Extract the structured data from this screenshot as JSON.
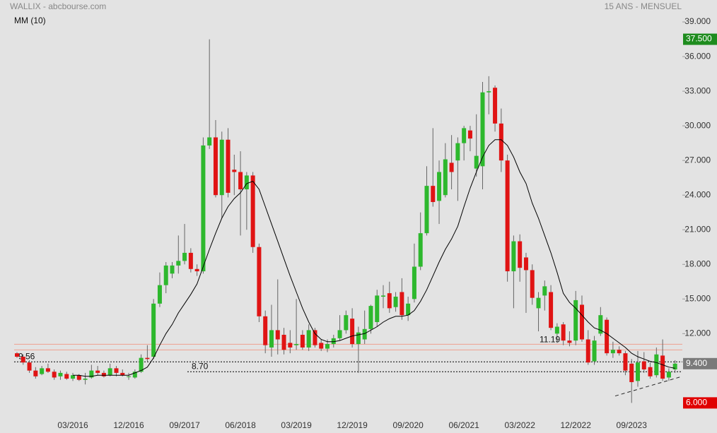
{
  "chart_data": {
    "type": "candlestick",
    "title": "WALLIX - abcbourse.com",
    "subtitle": "15 ANS - MENSUEL",
    "indicator_label": "MM (10)",
    "categories": [
      null,
      null,
      null,
      null,
      null,
      null,
      null,
      null,
      null,
      "03/2016",
      null,
      null,
      null,
      null,
      null,
      null,
      null,
      null,
      "12/2016",
      null,
      null,
      null,
      null,
      null,
      null,
      null,
      null,
      "09/2017",
      null,
      null,
      null,
      null,
      null,
      null,
      null,
      null,
      "06/2018",
      null,
      null,
      null,
      null,
      null,
      null,
      null,
      null,
      "03/2019",
      null,
      null,
      null,
      null,
      null,
      null,
      null,
      null,
      "12/2019",
      null,
      null,
      null,
      null,
      null,
      null,
      null,
      null,
      "09/2020",
      null,
      null,
      null,
      null,
      null,
      null,
      null,
      null,
      "06/2021",
      null,
      null,
      null,
      null,
      null,
      null,
      null,
      null,
      "03/2022",
      null,
      null,
      null,
      null,
      null,
      null,
      null,
      null,
      "12/2022",
      null,
      null,
      null,
      null,
      null,
      null,
      null,
      null,
      "09/2023",
      null,
      null,
      null,
      null,
      null,
      null,
      null
    ],
    "open": [
      10.3,
      10.0,
      9.5,
      8.8,
      8.5,
      9.0,
      8.7,
      8.3,
      8.5,
      8.1,
      8.4,
      8.0,
      8.2,
      8.8,
      8.6,
      8.4,
      9.0,
      8.6,
      8.3,
      8.2,
      8.7,
      9.9,
      10.0,
      14.6,
      16.2,
      17.2,
      17.9,
      18.3,
      19.0,
      17.6,
      17.4,
      28.3,
      29.0,
      24.0,
      28.8,
      26.2,
      26.0,
      24.5,
      25.7,
      19.5,
      13.5,
      10.8,
      12.3,
      11.9,
      11.2,
      11.0,
      11.9,
      10.8,
      12.3,
      11.2,
      10.7,
      11.1,
      11.6,
      12.3,
      13.3,
      11.1,
      11.5,
      12.4,
      13.0,
      15.2,
      15.5,
      14.3,
      15.6,
      13.6,
      15.0,
      17.8,
      20.7,
      24.8,
      23.5,
      24.0,
      26.8,
      27.0,
      28.5,
      29.6,
      26.3,
      26.5,
      32.9,
      33.3,
      30.2,
      27.0,
      17.4,
      20.0,
      18.6,
      17.5,
      14.2,
      15.3,
      15.6,
      12.0,
      12.8,
      11.4,
      11.4,
      14.5,
      11.5,
      9.6,
      12.0,
      13.2,
      10.3,
      10.6,
      10.3,
      9.4,
      7.9,
      9.6,
      9.1,
      8.4,
      10.1,
      8.2,
      8.9
    ],
    "high": [
      10.4,
      10.2,
      9.7,
      9.1,
      9.2,
      9.4,
      8.9,
      8.8,
      8.7,
      8.6,
      8.5,
      8.6,
      9.3,
      9.2,
      8.8,
      9.4,
      9.2,
      8.9,
      8.6,
      8.9,
      10.2,
      11.0,
      15.0,
      17.3,
      18.2,
      18.2,
      20.5,
      21.5,
      19.4,
      18.0,
      29.0,
      37.5,
      30.5,
      29.5,
      29.8,
      27.5,
      27.8,
      26.0,
      26.0,
      19.8,
      14.0,
      14.5,
      16.7,
      12.5,
      12.3,
      15.0,
      12.3,
      12.8,
      12.5,
      11.5,
      11.5,
      11.9,
      13.6,
      14.0,
      14.2,
      12.6,
      14.0,
      14.5,
      15.8,
      16.2,
      16.5,
      15.6,
      16.8,
      15.2,
      19.8,
      22.5,
      26.5,
      29.8,
      27.0,
      28.5,
      29.2,
      29.0,
      30.0,
      30.0,
      31.0,
      33.8,
      34.3,
      33.5,
      31.5,
      27.5,
      20.5,
      20.6,
      19.0,
      18.0,
      15.6,
      16.6,
      16.2,
      12.9,
      13.0,
      12.2,
      15.7,
      15.3,
      12.3,
      11.8,
      14.3,
      13.4,
      11.3,
      10.9,
      10.5,
      9.8,
      10.5,
      10.4,
      9.5,
      10.8,
      11.5,
      9.0,
      9.7
    ],
    "low": [
      9.9,
      9.3,
      8.6,
      8.1,
      8.4,
      8.6,
      8.0,
      8.0,
      8.0,
      7.9,
      7.9,
      7.6,
      8.1,
      8.4,
      8.2,
      8.3,
      8.3,
      8.3,
      8.0,
      8.1,
      8.6,
      9.6,
      9.8,
      14.3,
      15.5,
      16.8,
      17.2,
      18.0,
      17.3,
      17.0,
      17.2,
      28.0,
      23.8,
      22.0,
      23.8,
      24.0,
      20.5,
      21.0,
      19.0,
      13.0,
      10.3,
      10.0,
      10.2,
      10.2,
      10.3,
      10.6,
      10.6,
      10.5,
      10.8,
      10.5,
      10.4,
      10.8,
      11.4,
      12.0,
      10.8,
      8.6,
      11.1,
      12.0,
      12.6,
      14.2,
      13.8,
      13.9,
      13.2,
      13.1,
      14.7,
      17.5,
      20.5,
      23.0,
      21.5,
      23.8,
      24.5,
      23.5,
      27.0,
      27.8,
      25.6,
      24.5,
      31.0,
      29.5,
      26.0,
      16.5,
      14.2,
      16.5,
      13.8,
      14.5,
      12.2,
      14.0,
      12.3,
      11.2,
      11.0,
      10.9,
      11.0,
      11.3,
      9.3,
      9.3,
      11.8,
      10.1,
      9.9,
      10.1,
      8.4,
      6.0,
      7.4,
      8.6,
      8.1,
      8.2,
      7.9,
      7.9,
      8.6
    ],
    "close": [
      10.0,
      9.5,
      8.8,
      8.3,
      9.0,
      8.7,
      8.2,
      8.6,
      8.1,
      8.4,
      8.0,
      8.1,
      8.8,
      8.6,
      8.3,
      9.0,
      8.6,
      8.4,
      8.3,
      8.7,
      9.9,
      9.8,
      14.6,
      16.2,
      17.9,
      17.9,
      18.3,
      19.0,
      17.6,
      17.4,
      28.3,
      29.0,
      24.0,
      28.8,
      24.2,
      26.0,
      24.5,
      25.7,
      19.5,
      13.5,
      11.0,
      12.3,
      11.5,
      10.6,
      10.8,
      11.1,
      10.8,
      12.3,
      11.0,
      10.7,
      11.1,
      11.6,
      12.3,
      13.6,
      11.1,
      12.1,
      12.4,
      14.4,
      15.3,
      15.3,
      14.2,
      15.2,
      13.6,
      14.6,
      17.8,
      20.7,
      24.8,
      23.4,
      26.0,
      27.1,
      26.0,
      28.5,
      29.8,
      28.9,
      27.4,
      32.9,
      33.0,
      30.2,
      27.0,
      17.4,
      20.0,
      17.7,
      17.5,
      15.1,
      15.1,
      16.1,
      12.5,
      12.6,
      11.4,
      11.2,
      14.9,
      11.5,
      9.5,
      11.4,
      13.6,
      10.3,
      10.6,
      10.3,
      8.8,
      7.8,
      9.5,
      8.9,
      8.3,
      10.2,
      8.1,
      8.7,
      9.4
    ],
    "ma": [
      null,
      null,
      null,
      null,
      null,
      null,
      null,
      null,
      null,
      8.4,
      8.4,
      8.3,
      8.3,
      8.4,
      8.4,
      8.4,
      8.4,
      8.4,
      8.4,
      8.6,
      8.8,
      9.1,
      9.9,
      11.0,
      12.0,
      12.8,
      13.8,
      14.6,
      15.4,
      16.3,
      17.8,
      19.3,
      20.7,
      22.0,
      23.0,
      23.7,
      24.2,
      25.0,
      25.2,
      24.5,
      23.0,
      21.5,
      20.0,
      18.5,
      17.0,
      15.6,
      14.2,
      13.0,
      12.0,
      11.5,
      11.3,
      11.3,
      11.4,
      11.6,
      11.8,
      11.9,
      12.0,
      12.3,
      12.6,
      13.0,
      13.3,
      13.5,
      13.5,
      13.6,
      14.0,
      14.8,
      15.8,
      17.0,
      18.2,
      19.3,
      20.2,
      21.3,
      23.0,
      24.6,
      26.0,
      27.3,
      28.3,
      28.8,
      28.8,
      28.3,
      27.3,
      26.0,
      25.0,
      23.3,
      22.0,
      20.5,
      19.0,
      17.3,
      15.5,
      14.7,
      14.2,
      13.6,
      13.0,
      12.5,
      12.3,
      12.0,
      11.6,
      11.2,
      10.8,
      10.3,
      10.0,
      9.8,
      9.6,
      9.5,
      9.3,
      9.1,
      9.0
    ],
    "up_color": "#2db82d",
    "down_color": "#e01414",
    "ma_color": "#000000",
    "ylim": [
      4.8,
      40.9
    ],
    "yticks": [
      {
        "value": 12,
        "label": "12.000"
      },
      {
        "value": 15,
        "label": "15.000"
      },
      {
        "value": 18,
        "label": "18.000"
      },
      {
        "value": 21,
        "label": "21.000"
      },
      {
        "value": 24,
        "label": "24.000"
      },
      {
        "value": 27,
        "label": "27.000"
      },
      {
        "value": 30,
        "label": "30.000"
      },
      {
        "value": 33,
        "label": "33.000"
      },
      {
        "value": 36,
        "label": "36.000"
      },
      {
        "value": 39,
        "label": "39.000"
      }
    ],
    "levels": [
      {
        "value": 11.08,
        "color": "#f0a090"
      },
      {
        "value": 10.59,
        "color": "#f0a090"
      },
      {
        "value": 9.56,
        "label": "9.56",
        "color": "#000000"
      },
      {
        "value": 8.7,
        "label": "8.70",
        "color": "#000000"
      }
    ],
    "trendline": [
      6.6,
      8.3
    ],
    "annotations": [
      11.19
    ],
    "price_tags": [
      {
        "value": 37.5,
        "label": "37.500",
        "color": "#1e8c1e"
      },
      {
        "value": 9.4,
        "label": "9.400",
        "color": "#7a7a7a"
      },
      {
        "value": 6,
        "label": "6.000",
        "color": "#e00000"
      }
    ],
    "grid": false
  }
}
